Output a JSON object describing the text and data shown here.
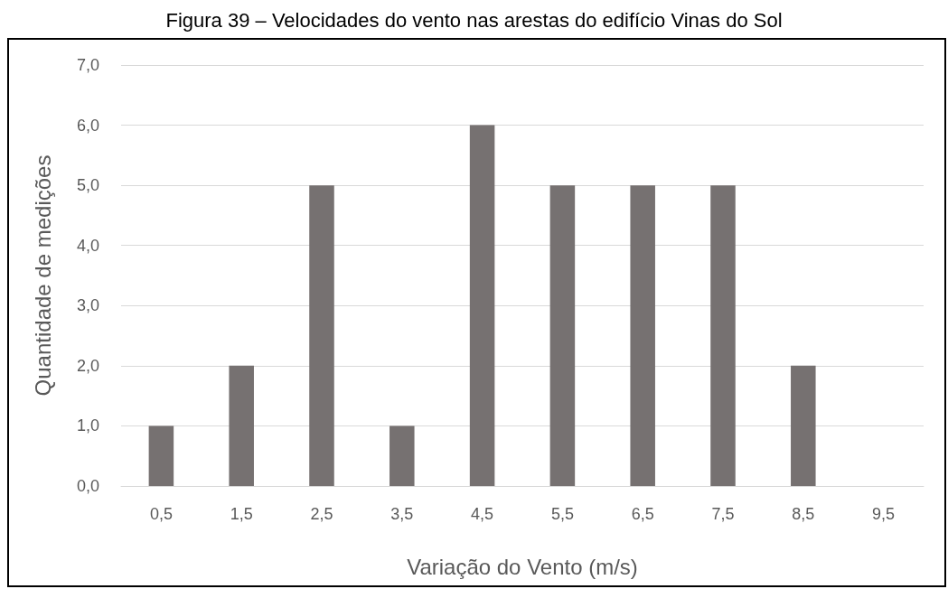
{
  "chart_data": {
    "type": "bar",
    "title": "Figura 39 – Velocidades do vento nas arestas do edifício Vinas do Sol",
    "xlabel": "Variação do Vento (m/s)",
    "ylabel": "Quantidade de medições",
    "categories": [
      "0,5",
      "1,5",
      "2,5",
      "3,5",
      "4,5",
      "5,5",
      "6,5",
      "7,5",
      "8,5",
      "9,5"
    ],
    "values": [
      1,
      2,
      5,
      1,
      6,
      5,
      5,
      5,
      2,
      0
    ],
    "color": "#767171",
    "ylim": [
      0,
      7
    ],
    "yticks": [
      {
        "value": 0,
        "label": "0,0"
      },
      {
        "value": 1,
        "label": "1,0"
      },
      {
        "value": 2,
        "label": "2,0"
      },
      {
        "value": 3,
        "label": "3,0"
      },
      {
        "value": 4,
        "label": "4,0"
      },
      {
        "value": 5,
        "label": "5,0"
      },
      {
        "value": 6,
        "label": "6,0"
      },
      {
        "value": 7,
        "label": "7,0"
      }
    ],
    "grid": "y"
  }
}
